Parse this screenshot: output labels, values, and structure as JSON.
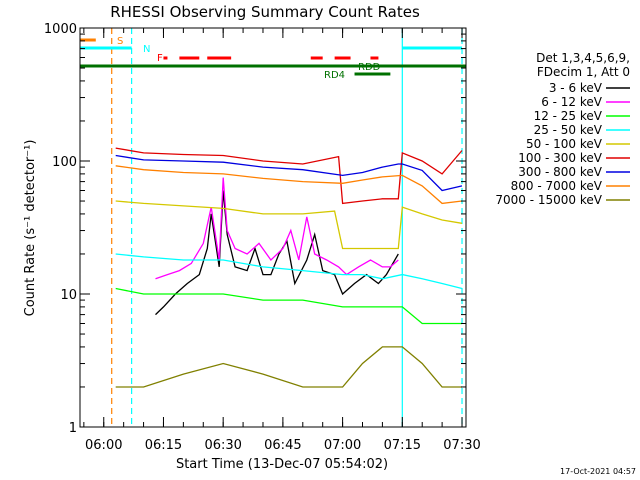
{
  "chart_data": {
    "type": "line",
    "title": "RHESSI Observing Summary Count Rates",
    "xlabel": "Start Time (13-Dec-07 05:54:02)",
    "ylabel": "Count Rate (s⁻¹ detector⁻¹)",
    "yscale": "log",
    "xlim": [
      "05:54:02",
      "07:31:00"
    ],
    "ylim": [
      1,
      1000
    ],
    "x_ticks": [
      "06:00",
      "06:15",
      "06:30",
      "06:45",
      "07:00",
      "07:15",
      "07:30"
    ],
    "y_ticks": [
      "1",
      "10",
      "100",
      "1000"
    ],
    "grid": false,
    "legend": {
      "placement": "right",
      "header": [
        "Det 1,3,4,5,6,9,",
        "FDecim 1, Att 0"
      ],
      "entries": [
        {
          "label": "3 - 6 keV",
          "color": "#000000"
        },
        {
          "label": "6 - 12 keV",
          "color": "#ff00ff"
        },
        {
          "label": "12 - 25 keV",
          "color": "#00ff00"
        },
        {
          "label": "25 - 50 keV",
          "color": "#00ffff"
        },
        {
          "label": "50 - 100 keV",
          "color": "#d4c800"
        },
        {
          "label": "100 - 300 keV",
          "color": "#e00000"
        },
        {
          "label": "300 - 800 keV",
          "color": "#0000e0"
        },
        {
          "label": "800 - 7000 keV",
          "color": "#ff8000"
        },
        {
          "label": "7000 - 15000 keV",
          "color": "#808000"
        }
      ]
    },
    "series": [
      {
        "name": "3 - 6 keV",
        "color": "#000000",
        "x": [
          "06:13",
          "06:15",
          "06:18",
          "06:21",
          "06:24",
          "06:26",
          "06:27",
          "06:29",
          "06:30",
          "06:31",
          "06:33",
          "06:36",
          "06:38",
          "06:40",
          "06:42",
          "06:44",
          "06:46",
          "06:48",
          "06:51",
          "06:53",
          "06:55",
          "06:58",
          "07:00",
          "07:03",
          "07:06",
          "07:09",
          "07:11",
          "07:14"
        ],
        "y": [
          7,
          8,
          10,
          12,
          14,
          22,
          40,
          16,
          60,
          28,
          16,
          15,
          22,
          14,
          14,
          20,
          25,
          12,
          18,
          28,
          15,
          14,
          10,
          12,
          14,
          12,
          14,
          20
        ]
      },
      {
        "name": "6 - 12 keV",
        "color": "#ff00ff",
        "x": [
          "06:13",
          "06:16",
          "06:19",
          "06:22",
          "06:25",
          "06:27",
          "06:29",
          "06:30",
          "06:31",
          "06:33",
          "06:36",
          "06:39",
          "06:42",
          "06:45",
          "06:47",
          "06:49",
          "06:51",
          "06:53",
          "06:56",
          "06:59",
          "07:01",
          "07:04",
          "07:07",
          "07:10",
          "07:12",
          "07:14"
        ],
        "y": [
          13,
          14,
          15,
          17,
          24,
          45,
          18,
          75,
          30,
          22,
          20,
          24,
          18,
          22,
          30,
          18,
          38,
          20,
          18,
          16,
          14,
          16,
          18,
          16,
          16,
          18
        ]
      },
      {
        "name": "12 - 25 keV",
        "color": "#00ff00",
        "x": [
          "06:03",
          "06:10",
          "06:20",
          "06:30",
          "06:40",
          "06:50",
          "07:00",
          "07:05",
          "07:10",
          "07:15",
          "07:20",
          "07:25",
          "07:30"
        ],
        "y": [
          11,
          10,
          10,
          10,
          9,
          9,
          8,
          8,
          8,
          8,
          6,
          6,
          6
        ]
      },
      {
        "name": "25 - 50 keV",
        "color": "#00ffff",
        "x": [
          "06:03",
          "06:10",
          "06:20",
          "06:30",
          "06:40",
          "06:50",
          "07:00",
          "07:05",
          "07:10",
          "07:15",
          "07:20",
          "07:25",
          "07:30"
        ],
        "y": [
          20,
          19,
          18,
          18,
          16,
          15,
          14,
          14,
          13,
          14,
          13,
          12,
          11
        ]
      },
      {
        "name": "50 - 100 keV",
        "color": "#d4c800",
        "x": [
          "06:03",
          "06:10",
          "06:20",
          "06:30",
          "06:40",
          "06:50",
          "06:58",
          "07:00",
          "07:05",
          "07:10",
          "07:14",
          "07:15",
          "07:20",
          "07:25",
          "07:30"
        ],
        "y": [
          50,
          48,
          46,
          44,
          40,
          40,
          42,
          22,
          22,
          22,
          22,
          45,
          40,
          36,
          34
        ]
      },
      {
        "name": "100 - 300 keV",
        "color": "#e00000",
        "x": [
          "06:03",
          "06:10",
          "06:20",
          "06:30",
          "06:40",
          "06:50",
          "06:59",
          "07:00",
          "07:05",
          "07:10",
          "07:14",
          "07:15",
          "07:20",
          "07:25",
          "07:30"
        ],
        "y": [
          125,
          115,
          112,
          110,
          100,
          95,
          108,
          48,
          50,
          52,
          52,
          115,
          100,
          80,
          120
        ]
      },
      {
        "name": "300 - 800 keV",
        "color": "#0000e0",
        "x": [
          "06:03",
          "06:10",
          "06:20",
          "06:30",
          "06:40",
          "06:50",
          "07:00",
          "07:05",
          "07:10",
          "07:14",
          "07:15",
          "07:20",
          "07:25",
          "07:30"
        ],
        "y": [
          110,
          102,
          100,
          98,
          90,
          86,
          78,
          82,
          90,
          95,
          95,
          85,
          60,
          65
        ]
      },
      {
        "name": "800 - 7000 keV",
        "color": "#ff8000",
        "x": [
          "06:03",
          "06:10",
          "06:20",
          "06:30",
          "06:40",
          "06:50",
          "07:00",
          "07:05",
          "07:10",
          "07:15",
          "07:20",
          "07:25",
          "07:30"
        ],
        "y": [
          92,
          86,
          82,
          80,
          74,
          70,
          68,
          72,
          76,
          78,
          65,
          48,
          50
        ]
      },
      {
        "name": "7000 - 15000 keV",
        "color": "#808000",
        "x": [
          "06:03",
          "06:10",
          "06:20",
          "06:30",
          "06:40",
          "06:50",
          "07:00",
          "07:05",
          "07:10",
          "07:15",
          "07:20",
          "07:25",
          "07:30"
        ],
        "y": [
          2,
          2,
          2.5,
          3,
          2.5,
          2,
          2,
          3,
          4,
          4,
          3,
          2,
          2
        ]
      }
    ],
    "flag_bars": [
      {
        "label": "S",
        "color": "#ff8000"
      },
      {
        "label": "N",
        "color": "#00ffff"
      },
      {
        "label": "F",
        "color": "#ff0000"
      },
      {
        "label": "RDD",
        "color": "#007000"
      },
      {
        "label": "RD4",
        "color": "#007000"
      }
    ],
    "flag_intervals": {
      "S": [
        [
          "05:54",
          "05:58"
        ]
      ],
      "N": [
        [
          "05:54",
          "06:07"
        ],
        [
          "07:15",
          "07:30"
        ]
      ],
      "F": [
        [
          "06:15",
          "06:16"
        ],
        [
          "06:19",
          "06:24"
        ],
        [
          "06:26",
          "06:32"
        ],
        [
          "06:52",
          "06:55"
        ],
        [
          "06:58",
          "07:02"
        ],
        [
          "07:07",
          "07:09"
        ]
      ],
      "RDD": [
        [
          "05:54",
          "07:31"
        ]
      ],
      "RD4": [
        [
          "07:03",
          "07:12"
        ]
      ]
    },
    "vertical_markers": [
      {
        "time": "06:02",
        "color": "#ff8000",
        "style": "dashed"
      },
      {
        "time": "06:07",
        "color": "#00ffff",
        "style": "dashed"
      },
      {
        "time": "07:15",
        "color": "#00ffff",
        "style": "solid"
      },
      {
        "time": "07:30",
        "color": "#00ffff",
        "style": "dashed"
      }
    ]
  },
  "footer": {
    "timestamp": "17-Oct-2021 04:57"
  }
}
